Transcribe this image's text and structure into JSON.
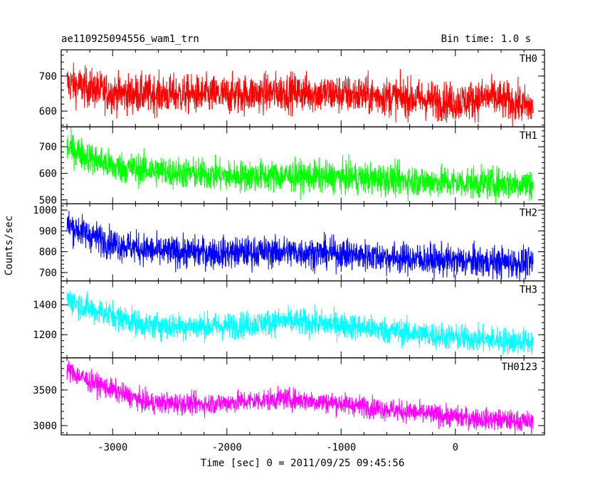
{
  "chart_data": {
    "type": "line",
    "title": "ae110925094556_wam1_trn",
    "subtitle": "Bin time: 1.0 s",
    "xlabel": "Time [sec] 0 = 2011/09/25 09:45:56",
    "ylabel": "Counts/sec",
    "xlim": [
      -3450,
      780
    ],
    "xticks": [
      -3000,
      -2000,
      -1000,
      0
    ],
    "x_start": -3400,
    "x_end": 680,
    "grid": false,
    "panels": [
      {
        "name": "TH0",
        "color": "#ff0000",
        "ylim": [
          555,
          775
        ],
        "yticks": [
          600,
          700
        ],
        "trend": [
          [
            -3400,
            680
          ],
          [
            -3000,
            650
          ],
          [
            -2000,
            645
          ],
          [
            -1500,
            655
          ],
          [
            -1000,
            648
          ],
          [
            -500,
            640
          ],
          [
            0,
            625
          ],
          [
            300,
            640
          ],
          [
            680,
            610
          ]
        ],
        "noise": 28
      },
      {
        "name": "TH1",
        "color": "#00ff00",
        "ylim": [
          485,
          775
        ],
        "yticks": [
          500,
          600,
          700
        ],
        "trend": [
          [
            -3400,
            700
          ],
          [
            -3200,
            660
          ],
          [
            -3000,
            625
          ],
          [
            -2500,
            605
          ],
          [
            -2000,
            590
          ],
          [
            -1500,
            590
          ],
          [
            -1000,
            585
          ],
          [
            -500,
            575
          ],
          [
            0,
            565
          ],
          [
            680,
            560
          ]
        ],
        "noise": 30
      },
      {
        "name": "TH2",
        "color": "#0000ff",
        "ylim": [
          660,
          1030
        ],
        "yticks": [
          700,
          800,
          900,
          1000
        ],
        "trend": [
          [
            -3400,
            930
          ],
          [
            -3200,
            880
          ],
          [
            -3000,
            840
          ],
          [
            -2600,
            800
          ],
          [
            -2000,
            795
          ],
          [
            -1500,
            800
          ],
          [
            -1000,
            790
          ],
          [
            -500,
            770
          ],
          [
            0,
            755
          ],
          [
            680,
            745
          ]
        ],
        "noise": 38
      },
      {
        "name": "TH3",
        "color": "#00ffff",
        "ylim": [
          1045,
          1560
        ],
        "yticks": [
          1200,
          1400
        ],
        "trend": [
          [
            -3400,
            1440
          ],
          [
            -3200,
            1370
          ],
          [
            -3000,
            1330
          ],
          [
            -2700,
            1260
          ],
          [
            -2000,
            1255
          ],
          [
            -1500,
            1290
          ],
          [
            -1000,
            1265
          ],
          [
            -500,
            1220
          ],
          [
            0,
            1180
          ],
          [
            680,
            1150
          ]
        ],
        "noise": 45
      },
      {
        "name": "TH0123",
        "color": "#ff00ff",
        "ylim": [
          2870,
          3950
        ],
        "yticks": [
          3000,
          3500
        ],
        "trend": [
          [
            -3400,
            3780
          ],
          [
            -3200,
            3620
          ],
          [
            -3000,
            3500
          ],
          [
            -2700,
            3320
          ],
          [
            -2200,
            3300
          ],
          [
            -1500,
            3380
          ],
          [
            -1000,
            3310
          ],
          [
            -500,
            3210
          ],
          [
            0,
            3120
          ],
          [
            680,
            3050
          ]
        ],
        "noise": 75
      }
    ]
  }
}
